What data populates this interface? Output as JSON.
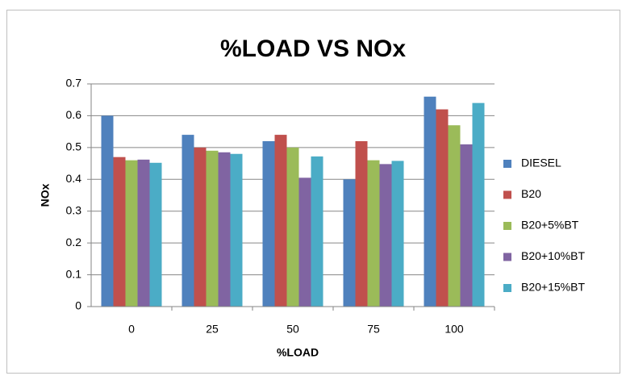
{
  "chart_data": {
    "type": "bar",
    "title": "%LOAD VS NOx",
    "x_label": "%LOAD",
    "y_label": "NOx",
    "categories": [
      "0",
      "25",
      "50",
      "75",
      "100"
    ],
    "series": [
      {
        "name": "DIESEL",
        "color": "#4f81bd",
        "values": [
          0.6,
          0.54,
          0.52,
          0.4,
          0.66
        ]
      },
      {
        "name": "B20",
        "color": "#c0504d",
        "values": [
          0.47,
          0.5,
          0.54,
          0.52,
          0.62
        ]
      },
      {
        "name": "B20+5%BT",
        "color": "#9bbb59",
        "values": [
          0.46,
          0.49,
          0.5,
          0.46,
          0.57
        ]
      },
      {
        "name": "B20+10%BT",
        "color": "#8064a2",
        "values": [
          0.462,
          0.485,
          0.405,
          0.448,
          0.51
        ]
      },
      {
        "name": "B20+15%BT",
        "color": "#4bacc6",
        "values": [
          0.452,
          0.48,
          0.472,
          0.458,
          0.64
        ]
      }
    ],
    "ylim": [
      0,
      0.7
    ],
    "yticks": [
      0,
      0.1,
      0.2,
      0.3,
      0.4,
      0.5,
      0.6,
      0.7
    ],
    "grid": true,
    "legend": "right"
  }
}
